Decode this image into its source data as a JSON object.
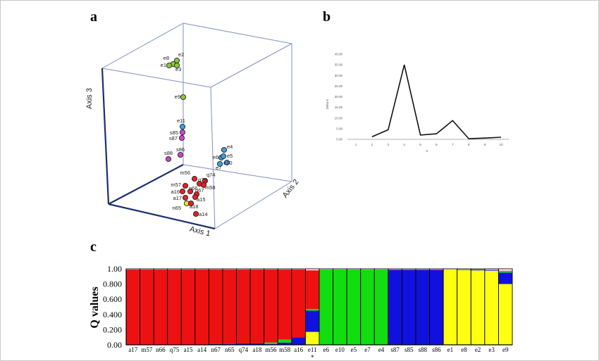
{
  "figure": {
    "panel_a_label": "a",
    "panel_b_label": "b",
    "panel_c_label": "c"
  },
  "chart_data": [
    {
      "panel": "a",
      "type": "scatter",
      "title": "",
      "axis_labels": [
        "Axis 1",
        "Axis 2",
        "Axis 3"
      ],
      "colors": {
        "green": "#8cc63e",
        "blue": "#3a9ee0",
        "magenta": "#cc44cc",
        "red": "#e22222",
        "yellow": "#f0e02a"
      },
      "points": [
        {
          "label": "e2",
          "color": "green"
        },
        {
          "label": "e8",
          "color": "green"
        },
        {
          "label": "e1",
          "color": "green"
        },
        {
          "label": "e3",
          "color": "green"
        },
        {
          "label": "e9",
          "color": "green"
        },
        {
          "label": "e11",
          "color": "blue"
        },
        {
          "label": "s85",
          "color": "magenta"
        },
        {
          "label": "s87",
          "color": "magenta"
        },
        {
          "label": "s86",
          "color": "magenta"
        },
        {
          "label": "s88",
          "color": "magenta"
        },
        {
          "label": "e4",
          "color": "blue"
        },
        {
          "label": "e6",
          "color": "blue"
        },
        {
          "label": "e5",
          "color": "blue"
        },
        {
          "label": "e10",
          "color": "blue"
        },
        {
          "label": "e7",
          "color": "blue"
        },
        {
          "label": "m56",
          "color": "red"
        },
        {
          "label": "q74",
          "color": "red"
        },
        {
          "label": "q75",
          "color": "red"
        },
        {
          "label": "m58",
          "color": "red"
        },
        {
          "label": "m57",
          "color": "red"
        },
        {
          "label": "a16",
          "color": "red"
        },
        {
          "label": "n66",
          "color": "red"
        },
        {
          "label": "n67",
          "color": "red"
        },
        {
          "label": "a17",
          "color": "red"
        },
        {
          "label": "a15",
          "color": "red"
        },
        {
          "label": "n65",
          "color": "yellow"
        },
        {
          "label": "a18",
          "color": "red"
        },
        {
          "label": "a14",
          "color": "red"
        }
      ]
    },
    {
      "panel": "b",
      "type": "line",
      "title": "",
      "xlabel": "K",
      "ylabel": "Delta K",
      "x": [
        1,
        2,
        3,
        4,
        5,
        6,
        7,
        8,
        9,
        10
      ],
      "y_ticks": [
        "0.00",
        "5.00",
        "10.00",
        "15.00",
        "20.00",
        "25.00",
        "30.00",
        "35.00",
        "40.00"
      ],
      "ylim": [
        0,
        40
      ],
      "series": [
        {
          "values": [
            null,
            1.2,
            4.5,
            35.0,
            2.0,
            2.6,
            8.8,
            0.3,
            0.6,
            1.0
          ]
        }
      ]
    },
    {
      "panel": "c",
      "type": "bar",
      "stacked": true,
      "ylabel": "Q values",
      "y_ticks": [
        "0.00",
        "0.200",
        "0.400",
        "0.600",
        "0.800",
        "1.00"
      ],
      "ylim": [
        0,
        1
      ],
      "categories": [
        "a17",
        "m57",
        "n66",
        "q75",
        "a15",
        "a14",
        "n67",
        "n65",
        "q74",
        "a18",
        "m56",
        "m58",
        "a16",
        "e11",
        "e6",
        "e10",
        "e5",
        "e7",
        "e4",
        "s87",
        "s85",
        "s88",
        "s86",
        "e1",
        "e8",
        "e2",
        "e3",
        "e9"
      ],
      "marker": {
        "category": "e11",
        "symbol": "*"
      },
      "series_colors": {
        "red": "#ee1111",
        "blue": "#1111dd",
        "green": "#11dd11",
        "yellow": "#ffff11"
      },
      "series": [
        {
          "color": "yellow",
          "values": [
            0,
            0,
            0,
            0,
            0,
            0,
            0,
            0,
            0,
            0,
            0,
            0,
            0,
            0.17,
            0,
            0,
            0,
            0,
            0,
            0,
            0,
            0,
            0,
            0.99,
            0.985,
            0.98,
            0.975,
            0.8
          ]
        },
        {
          "color": "blue",
          "values": [
            0,
            0,
            0,
            0,
            0,
            0,
            0.01,
            0.01,
            0.02,
            0.02,
            0.01,
            0.03,
            0.1,
            0.28,
            0,
            0,
            0,
            0,
            0,
            0.985,
            0.985,
            0.985,
            0.985,
            0,
            0.005,
            0.01,
            0.01,
            0.15
          ]
        },
        {
          "color": "green",
          "values": [
            0,
            0,
            0,
            0,
            0,
            0,
            0,
            0,
            0,
            0,
            0.02,
            0.04,
            0,
            0.02,
            0.99,
            0.99,
            0.99,
            0.99,
            0.99,
            0,
            0,
            0,
            0,
            0,
            0,
            0,
            0,
            0.02
          ]
        },
        {
          "color": "red",
          "values": [
            0.99,
            0.99,
            0.99,
            0.99,
            0.99,
            0.99,
            0.98,
            0.98,
            0.97,
            0.97,
            0.96,
            0.92,
            0.89,
            0.51,
            0,
            0,
            0,
            0,
            0,
            0.005,
            0.005,
            0.005,
            0.005,
            0,
            0,
            0,
            0,
            0.005
          ]
        }
      ]
    }
  ]
}
